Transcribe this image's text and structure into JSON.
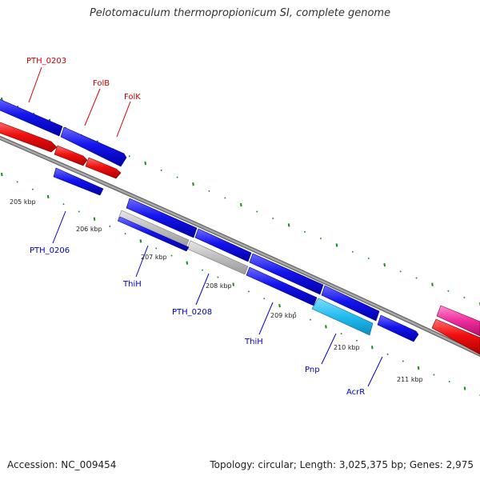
{
  "title": "Pelotomaculum thermopropionicum SI, complete genome",
  "accession": "Accession: NC_009454",
  "summary": "Topology: circular; Length: 3,025,375 bp; Genes: 2,975",
  "colors": {
    "forward_cds": "#1010e8",
    "reverse_cds": "#f01010",
    "gray_feature": "#bdbdbd",
    "cyan_feature": "#22bbee",
    "pink_feature": "#f02c9c",
    "backbone": "#888888",
    "tick": "#1a8a1a",
    "label_red": "#cc0000",
    "label_blue": "#0000bb"
  },
  "scale_labels": [
    "205 kbp",
    "206 kbp",
    "207 kbp",
    "208 kbp",
    "209 kbp",
    "210 kbp",
    "211 kbp"
  ],
  "gene_labels": [
    {
      "text": "PTH_0203",
      "color": "red"
    },
    {
      "text": "FolB",
      "color": "red"
    },
    {
      "text": "FolK",
      "color": "red"
    },
    {
      "text": "PTH_0206",
      "color": "blue"
    },
    {
      "text": "ThiH",
      "color": "blue"
    },
    {
      "text": "PTH_0208",
      "color": "blue"
    },
    {
      "text": "ThiH",
      "color": "blue"
    },
    {
      "text": "Pnp",
      "color": "blue"
    },
    {
      "text": "AcrR",
      "color": "blue"
    }
  ]
}
